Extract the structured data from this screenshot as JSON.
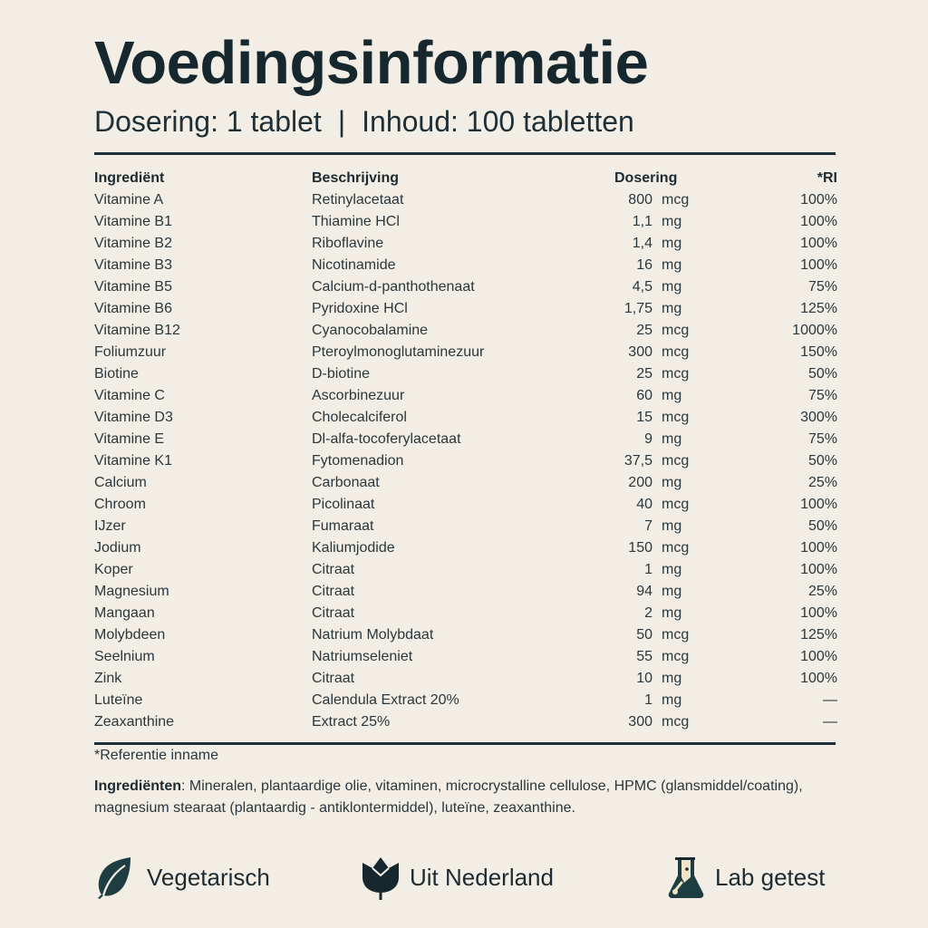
{
  "header": {
    "title": "Voedingsinformatie",
    "dosage": "Dosering: 1 tablet",
    "separator": "|",
    "contents": "Inhoud: 100 tabletten"
  },
  "table": {
    "columns": [
      "Ingrediënt",
      "Beschrijving",
      "Dosering",
      "*RI"
    ],
    "rows": [
      {
        "ingredient": "Vitamine A",
        "description": "Retinylacetaat",
        "amount": "800",
        "unit": "mcg",
        "ri": "100%"
      },
      {
        "ingredient": "Vitamine B1",
        "description": "Thiamine HCl",
        "amount": "1,1",
        "unit": "mg",
        "ri": "100%"
      },
      {
        "ingredient": "Vitamine B2",
        "description": "Riboflavine",
        "amount": "1,4",
        "unit": "mg",
        "ri": "100%"
      },
      {
        "ingredient": "Vitamine B3",
        "description": "Nicotinamide",
        "amount": "16",
        "unit": "mg",
        "ri": "100%"
      },
      {
        "ingredient": "Vitamine B5",
        "description": "Calcium-d-panthothenaat",
        "amount": "4,5",
        "unit": "mg",
        "ri": "75%"
      },
      {
        "ingredient": "Vitamine B6",
        "description": "Pyridoxine HCl",
        "amount": "1,75",
        "unit": "mg",
        "ri": "125%"
      },
      {
        "ingredient": "Vitamine B12",
        "description": "Cyanocobalamine",
        "amount": "25",
        "unit": "mcg",
        "ri": "1000%"
      },
      {
        "ingredient": "Foliumzuur",
        "description": "Pteroylmonoglutaminezuur",
        "amount": "300",
        "unit": "mcg",
        "ri": "150%"
      },
      {
        "ingredient": "Biotine",
        "description": "D-biotine",
        "amount": "25",
        "unit": "mcg",
        "ri": "50%"
      },
      {
        "ingredient": "Vitamine C",
        "description": "Ascorbinezuur",
        "amount": "60",
        "unit": "mg",
        "ri": "75%"
      },
      {
        "ingredient": "Vitamine D3",
        "description": "Cholecalciferol",
        "amount": "15",
        "unit": "mcg",
        "ri": "300%"
      },
      {
        "ingredient": "Vitamine E",
        "description": "Dl-alfa-tocoferylacetaat",
        "amount": "9",
        "unit": "mg",
        "ri": "75%"
      },
      {
        "ingredient": "Vitamine K1",
        "description": "Fytomenadion",
        "amount": "37,5",
        "unit": "mcg",
        "ri": "50%"
      },
      {
        "ingredient": "Calcium",
        "description": "Carbonaat",
        "amount": "200",
        "unit": "mg",
        "ri": "25%"
      },
      {
        "ingredient": "Chroom",
        "description": "Picolinaat",
        "amount": "40",
        "unit": "mcg",
        "ri": "100%"
      },
      {
        "ingredient": "IJzer",
        "description": "Fumaraat",
        "amount": "7",
        "unit": "mg",
        "ri": "50%"
      },
      {
        "ingredient": "Jodium",
        "description": "Kaliumjodide",
        "amount": "150",
        "unit": "mcg",
        "ri": "100%"
      },
      {
        "ingredient": "Koper",
        "description": "Citraat",
        "amount": "1",
        "unit": "mg",
        "ri": "100%"
      },
      {
        "ingredient": "Magnesium",
        "description": "Citraat",
        "amount": "94",
        "unit": "mg",
        "ri": "25%"
      },
      {
        "ingredient": "Mangaan",
        "description": "Citraat",
        "amount": "2",
        "unit": "mg",
        "ri": "100%"
      },
      {
        "ingredient": "Molybdeen",
        "description": "Natrium Molybdaat",
        "amount": "50",
        "unit": "mcg",
        "ri": "125%"
      },
      {
        "ingredient": "Seelnium",
        "description": "Natriumseleniet",
        "amount": "55",
        "unit": "mcg",
        "ri": "100%"
      },
      {
        "ingredient": "Zink",
        "description": "Citraat",
        "amount": "10",
        "unit": "mg",
        "ri": "100%"
      },
      {
        "ingredient": "Luteïne",
        "description": "Calendula Extract 20%",
        "amount": "1",
        "unit": "mg",
        "ri": "—"
      },
      {
        "ingredient": "Zeaxanthine",
        "description": "Extract 25%",
        "amount": "300",
        "unit": "mcg",
        "ri": "—"
      }
    ]
  },
  "footnote": "*Referentie inname",
  "ingredients": {
    "label": "Ingrediënten",
    "text": ": Mineralen, plantaardige olie, vitaminen, microcrystalline cellulose, HPMC (glansmiddel/coating), magnesium stearaat (plantaardig - antiklontermiddel), luteïne, zeaxanthine."
  },
  "badges": [
    {
      "icon": "leaf-icon",
      "label": "Vegetarisch"
    },
    {
      "icon": "tulip-icon",
      "label": "Uit Nederland"
    },
    {
      "icon": "flask-icon",
      "label": "Lab getest"
    }
  ],
  "colors": {
    "background": "#f3eee5",
    "text": "#1a2a30",
    "icon": "#1d3d40",
    "icon_light": "#efe3c8"
  }
}
